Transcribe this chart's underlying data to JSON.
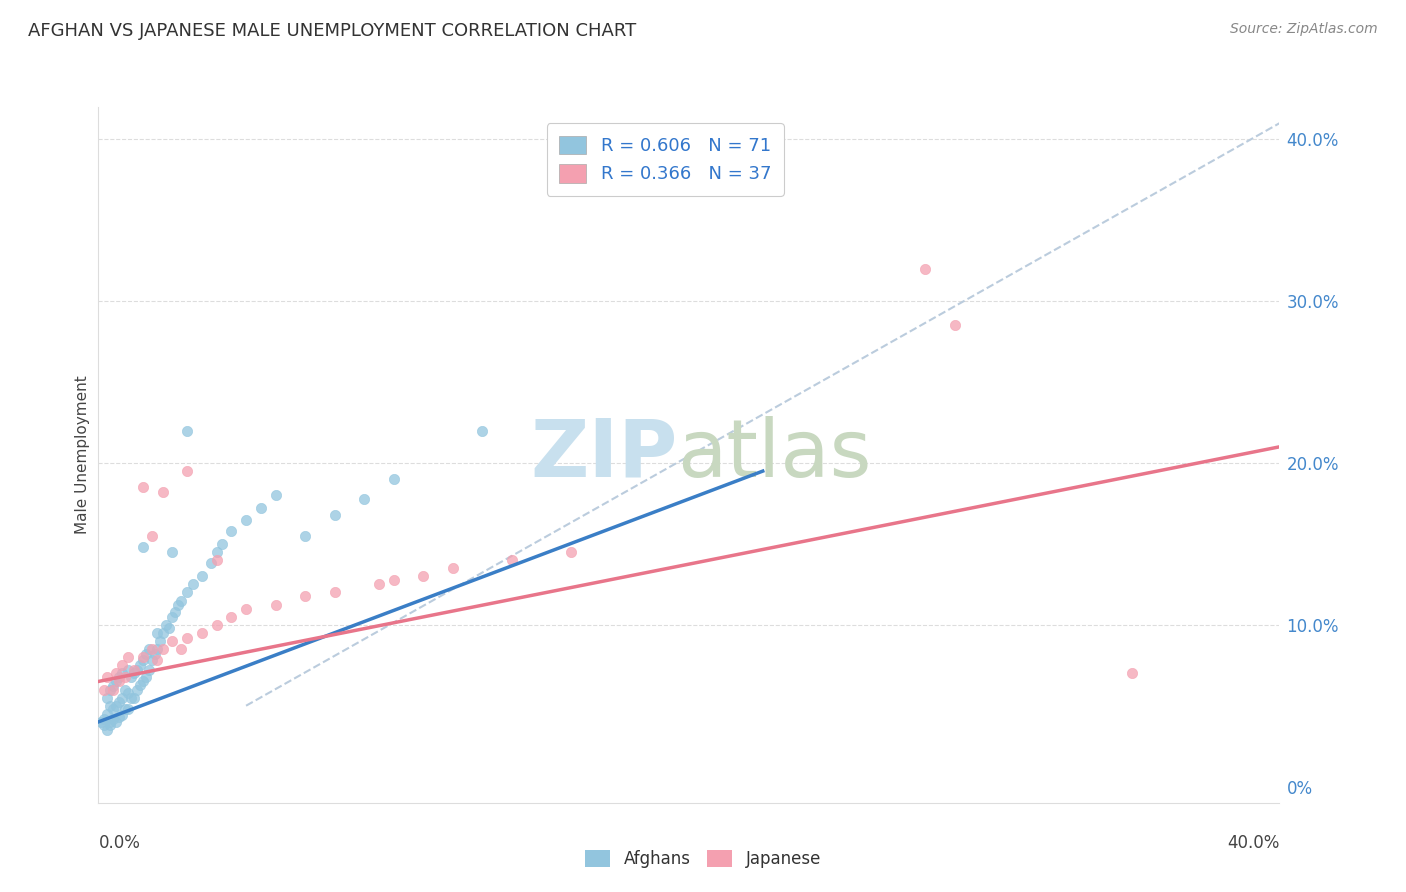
{
  "title": "AFGHAN VS JAPANESE MALE UNEMPLOYMENT CORRELATION CHART",
  "source": "Source: ZipAtlas.com",
  "ylabel": "Male Unemployment",
  "right_ytick_vals": [
    0.0,
    0.1,
    0.2,
    0.3,
    0.4
  ],
  "right_ytick_labels": [
    "0%",
    "10.0%",
    "20.0%",
    "30.0%",
    "40.0%"
  ],
  "afghan_color": "#92C5DE",
  "japanese_color": "#F4A0B0",
  "afghan_line_color": "#3A7EC6",
  "japanese_line_color": "#E8758A",
  "dashed_line_color": "#BBCCDD",
  "watermark_zip_color": "#C8E0EE",
  "watermark_atlas_color": "#C8D8C0",
  "xlim": [
    0.0,
    0.4
  ],
  "ylim": [
    -0.01,
    0.42
  ],
  "afghan_line_x0": 0.0,
  "afghan_line_y0": 0.04,
  "afghan_line_x1": 0.225,
  "afghan_line_y1": 0.195,
  "japanese_line_x0": 0.0,
  "japanese_line_y0": 0.065,
  "japanese_line_x1": 0.4,
  "japanese_line_y1": 0.21,
  "dash_line_x0": 0.05,
  "dash_line_y0": 0.05,
  "dash_line_x1": 0.4,
  "dash_line_y1": 0.41,
  "af_x": [
    0.001,
    0.002,
    0.002,
    0.003,
    0.003,
    0.003,
    0.004,
    0.004,
    0.004,
    0.004,
    0.005,
    0.005,
    0.005,
    0.006,
    0.006,
    0.006,
    0.007,
    0.007,
    0.007,
    0.008,
    0.008,
    0.008,
    0.009,
    0.009,
    0.01,
    0.01,
    0.01,
    0.011,
    0.011,
    0.012,
    0.012,
    0.013,
    0.013,
    0.014,
    0.014,
    0.015,
    0.015,
    0.016,
    0.016,
    0.017,
    0.017,
    0.018,
    0.019,
    0.02,
    0.02,
    0.021,
    0.022,
    0.023,
    0.024,
    0.025,
    0.026,
    0.027,
    0.028,
    0.03,
    0.032,
    0.035,
    0.038,
    0.04,
    0.042,
    0.045,
    0.05,
    0.055,
    0.06,
    0.07,
    0.08,
    0.09,
    0.1,
    0.13,
    0.03,
    0.025,
    0.015
  ],
  "af_y": [
    0.04,
    0.038,
    0.042,
    0.035,
    0.045,
    0.055,
    0.038,
    0.04,
    0.05,
    0.06,
    0.042,
    0.048,
    0.062,
    0.04,
    0.05,
    0.065,
    0.043,
    0.052,
    0.068,
    0.044,
    0.055,
    0.07,
    0.048,
    0.06,
    0.048,
    0.058,
    0.072,
    0.055,
    0.068,
    0.055,
    0.07,
    0.06,
    0.072,
    0.063,
    0.075,
    0.065,
    0.078,
    0.068,
    0.082,
    0.072,
    0.085,
    0.078,
    0.082,
    0.085,
    0.095,
    0.09,
    0.095,
    0.1,
    0.098,
    0.105,
    0.108,
    0.112,
    0.115,
    0.12,
    0.125,
    0.13,
    0.138,
    0.145,
    0.15,
    0.158,
    0.165,
    0.172,
    0.18,
    0.155,
    0.168,
    0.178,
    0.19,
    0.22,
    0.22,
    0.145,
    0.148
  ],
  "jp_x": [
    0.002,
    0.003,
    0.005,
    0.006,
    0.007,
    0.008,
    0.009,
    0.01,
    0.012,
    0.015,
    0.018,
    0.02,
    0.022,
    0.025,
    0.028,
    0.03,
    0.035,
    0.04,
    0.045,
    0.05,
    0.06,
    0.07,
    0.08,
    0.095,
    0.1,
    0.11,
    0.12,
    0.14,
    0.16,
    0.35,
    0.04,
    0.03,
    0.022,
    0.018,
    0.015,
    0.29,
    0.28
  ],
  "jp_y": [
    0.06,
    0.068,
    0.06,
    0.07,
    0.065,
    0.075,
    0.068,
    0.08,
    0.072,
    0.08,
    0.085,
    0.078,
    0.085,
    0.09,
    0.085,
    0.092,
    0.095,
    0.1,
    0.105,
    0.11,
    0.112,
    0.118,
    0.12,
    0.125,
    0.128,
    0.13,
    0.135,
    0.14,
    0.145,
    0.07,
    0.14,
    0.195,
    0.182,
    0.155,
    0.185,
    0.285,
    0.32
  ]
}
